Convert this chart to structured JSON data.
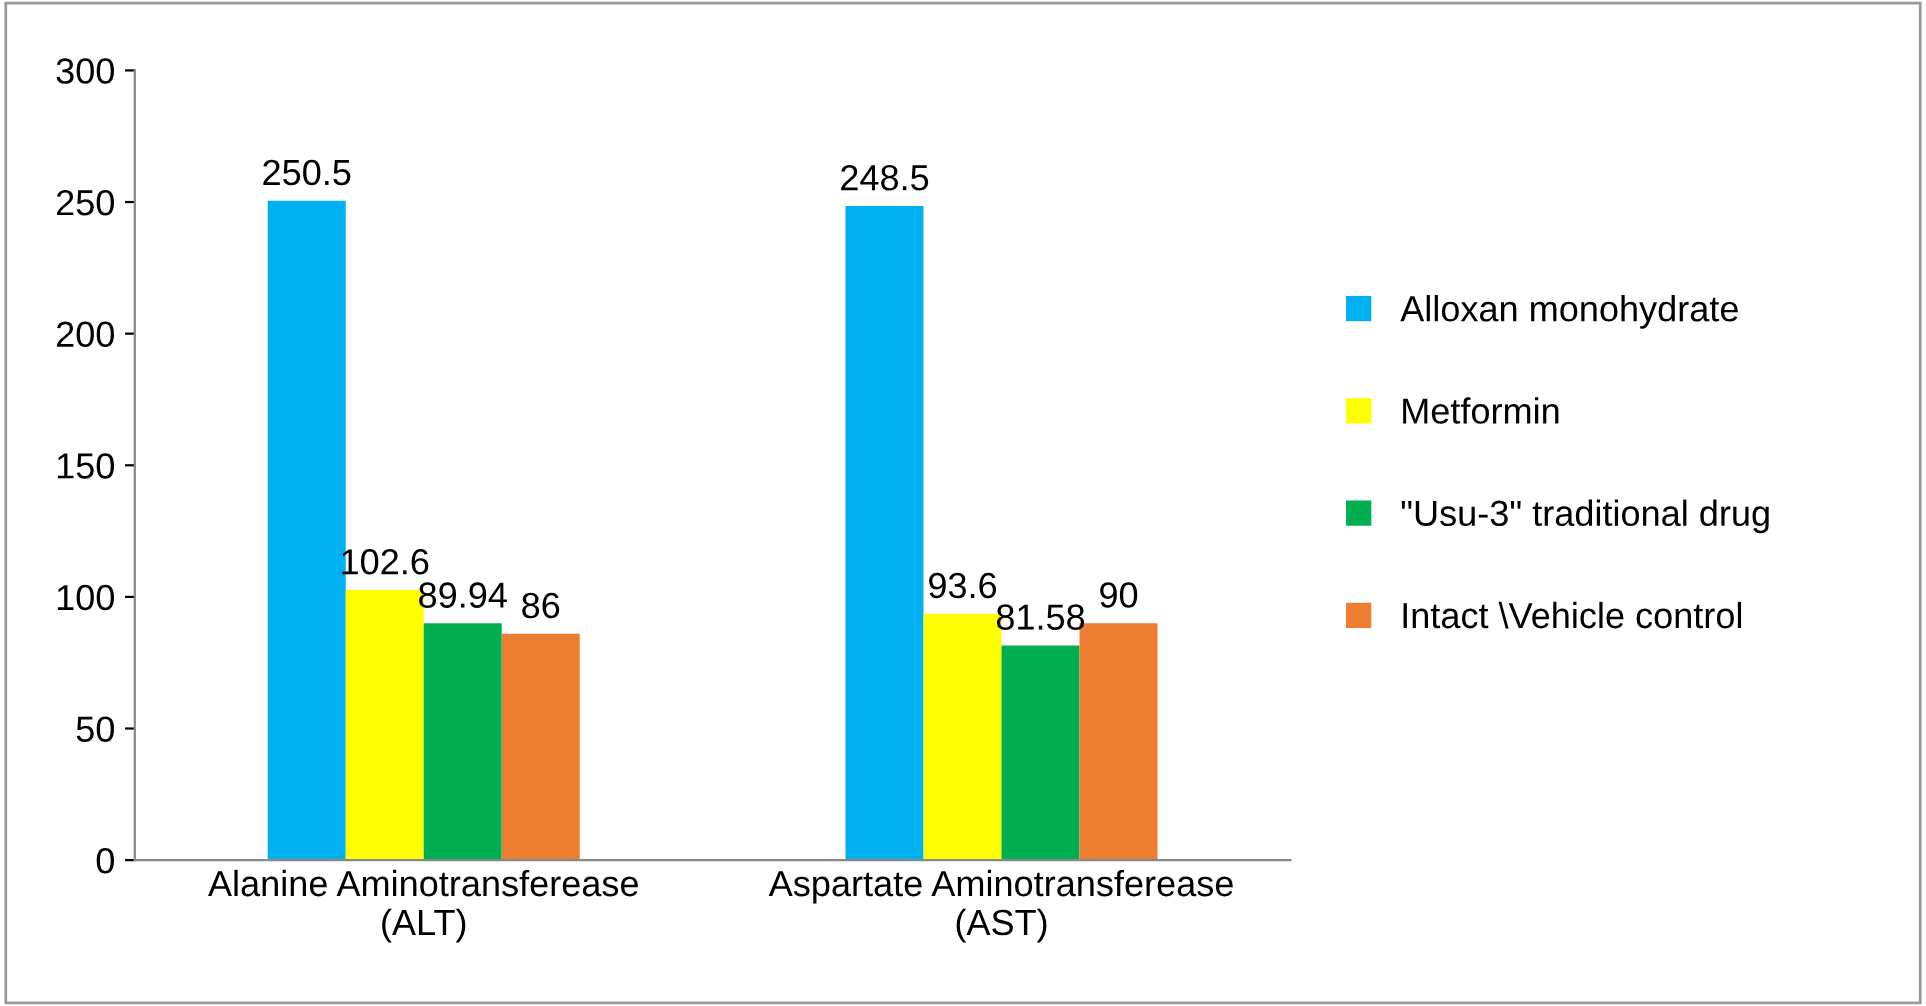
{
  "chart_data": {
    "type": "bar",
    "categories": [
      "Alanine Aminotransferease\n(ALT)",
      "Aspartate Aminotransferease\n(AST)"
    ],
    "series": [
      {
        "name": "Alloxan monohydrate",
        "color": "#00b0f0",
        "values": [
          250.5,
          248.5
        ]
      },
      {
        "name": "Metformin",
        "color": "#ffff00",
        "values": [
          102.6,
          93.6
        ]
      },
      {
        "name": "\"Usu-3\" traditional drug",
        "color": "#00b050",
        "values": [
          89.94,
          81.58
        ]
      },
      {
        "name": "Intact \\Vehicle control",
        "color": "#ed7d31",
        "values": [
          86,
          90
        ]
      }
    ],
    "ylim": [
      0,
      300
    ],
    "yticks": [
      0,
      50,
      100,
      150,
      200,
      250,
      300
    ],
    "data_labels": true,
    "legend": "right",
    "grid": false
  }
}
